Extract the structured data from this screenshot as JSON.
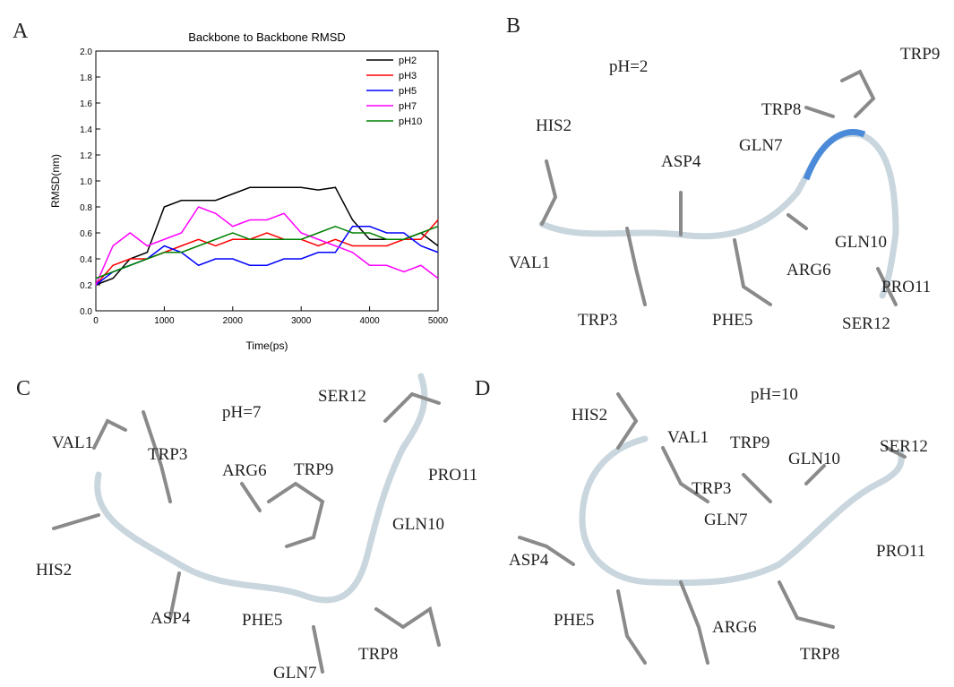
{
  "chart_data": {
    "type": "line",
    "panel_label": "A",
    "title": "Backbone to Backbone  RMSD",
    "x_label": "Time(ps)",
    "y_label": "RMSD(nm)",
    "x": [
      0,
      250,
      500,
      750,
      1000,
      1250,
      1500,
      1750,
      2000,
      2250,
      2500,
      2750,
      3000,
      3250,
      3500,
      3750,
      4000,
      4250,
      4500,
      4750,
      5000
    ],
    "series": [
      {
        "name": "pH2",
        "color": "#000000",
        "values": [
          0.2,
          0.25,
          0.4,
          0.45,
          0.8,
          0.85,
          0.85,
          0.85,
          0.9,
          0.95,
          0.95,
          0.95,
          0.95,
          0.93,
          0.95,
          0.7,
          0.55,
          0.55,
          0.55,
          0.6,
          0.5
        ]
      },
      {
        "name": "pH3",
        "color": "#ff0000",
        "values": [
          0.2,
          0.35,
          0.4,
          0.4,
          0.45,
          0.5,
          0.55,
          0.5,
          0.55,
          0.55,
          0.6,
          0.55,
          0.55,
          0.5,
          0.55,
          0.5,
          0.5,
          0.5,
          0.55,
          0.55,
          0.7
        ]
      },
      {
        "name": "pH5",
        "color": "#0000ff",
        "values": [
          0.2,
          0.3,
          0.35,
          0.4,
          0.5,
          0.45,
          0.35,
          0.4,
          0.4,
          0.35,
          0.35,
          0.4,
          0.4,
          0.45,
          0.45,
          0.65,
          0.65,
          0.6,
          0.6,
          0.5,
          0.45
        ]
      },
      {
        "name": "pH7",
        "color": "#ff00ff",
        "values": [
          0.2,
          0.5,
          0.6,
          0.5,
          0.55,
          0.6,
          0.8,
          0.75,
          0.65,
          0.7,
          0.7,
          0.75,
          0.6,
          0.55,
          0.5,
          0.45,
          0.35,
          0.35,
          0.3,
          0.35,
          0.25
        ]
      },
      {
        "name": "pH10",
        "color": "#008000",
        "values": [
          0.25,
          0.3,
          0.35,
          0.4,
          0.45,
          0.45,
          0.5,
          0.55,
          0.6,
          0.55,
          0.55,
          0.55,
          0.55,
          0.6,
          0.65,
          0.6,
          0.6,
          0.55,
          0.55,
          0.6,
          0.65
        ]
      }
    ],
    "xlim": [
      0,
      5000
    ],
    "xticks": [
      0,
      1000,
      2000,
      3000,
      4000,
      5000
    ],
    "ylim": [
      0,
      2.0
    ],
    "yticks": [
      {
        "value": 0,
        "label": "0.0"
      },
      0.2,
      0.4,
      0.6,
      0.8,
      {
        "value": 1,
        "label": "1.0"
      },
      1.2,
      1.4,
      1.6,
      1.8,
      {
        "value": 2,
        "label": "2.0"
      }
    ],
    "legend": "upper-right",
    "grid": false
  },
  "panels": [
    {
      "label": "B",
      "condition": "pH=2",
      "residues": [
        "TRP9",
        "TRP8",
        "HIS2",
        "ASP4",
        "GLN7",
        "VAL1",
        "GLN10",
        "ARG6",
        "PRO11",
        "TRP3",
        "PHE5",
        "SER12"
      ]
    },
    {
      "label": "C",
      "condition": "pH=7",
      "residues": [
        "VAL1",
        "TRP3",
        "SER12",
        "ARG6",
        "TRP9",
        "PRO11",
        "GLN10",
        "HIS2",
        "ASP4",
        "PHE5",
        "GLN7",
        "TRP8"
      ]
    },
    {
      "label": "D",
      "condition": "pH=10",
      "residues": [
        "HIS2",
        "VAL1",
        "TRP9",
        "GLN10",
        "SER12",
        "TRP3",
        "GLN7",
        "ASP4",
        "PRO11",
        "PHE5",
        "ARG6",
        "TRP8"
      ]
    }
  ]
}
